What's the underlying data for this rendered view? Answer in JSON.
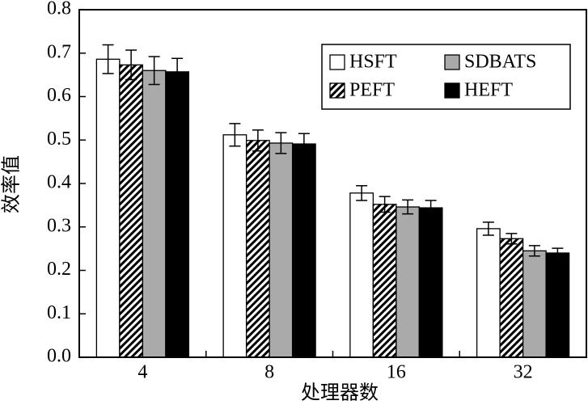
{
  "chart_data": {
    "type": "bar",
    "x_label": "处理器数",
    "y_label": "效率值",
    "categories": [
      "4",
      "8",
      "16",
      "32"
    ],
    "series": [
      {
        "name": "HSFT",
        "color": "#ffffff",
        "values": [
          0.686,
          0.512,
          0.378,
          0.296
        ],
        "errors": [
          0.033,
          0.026,
          0.017,
          0.015
        ]
      },
      {
        "name": "PEFT",
        "color": "#000000",
        "pattern": "hatch",
        "values": [
          0.673,
          0.499,
          0.352,
          0.273
        ],
        "errors": [
          0.034,
          0.024,
          0.018,
          0.012
        ]
      },
      {
        "name": "SDBATS",
        "color": "#aaaaaa",
        "values": [
          0.66,
          0.493,
          0.346,
          0.245
        ],
        "errors": [
          0.032,
          0.024,
          0.016,
          0.012
        ]
      },
      {
        "name": "HEFT",
        "color": "#000000",
        "values": [
          0.657,
          0.491,
          0.344,
          0.24
        ],
        "errors": [
          0.031,
          0.024,
          0.017,
          0.011
        ]
      }
    ],
    "ylim": [
      0,
      0.8
    ],
    "yticks": [
      {
        "value": 0,
        "label": "0.0"
      },
      0.1,
      0.2,
      0.3,
      0.4,
      0.5,
      0.6,
      0.7,
      0.8
    ],
    "legend": "upper right",
    "grid": false
  }
}
